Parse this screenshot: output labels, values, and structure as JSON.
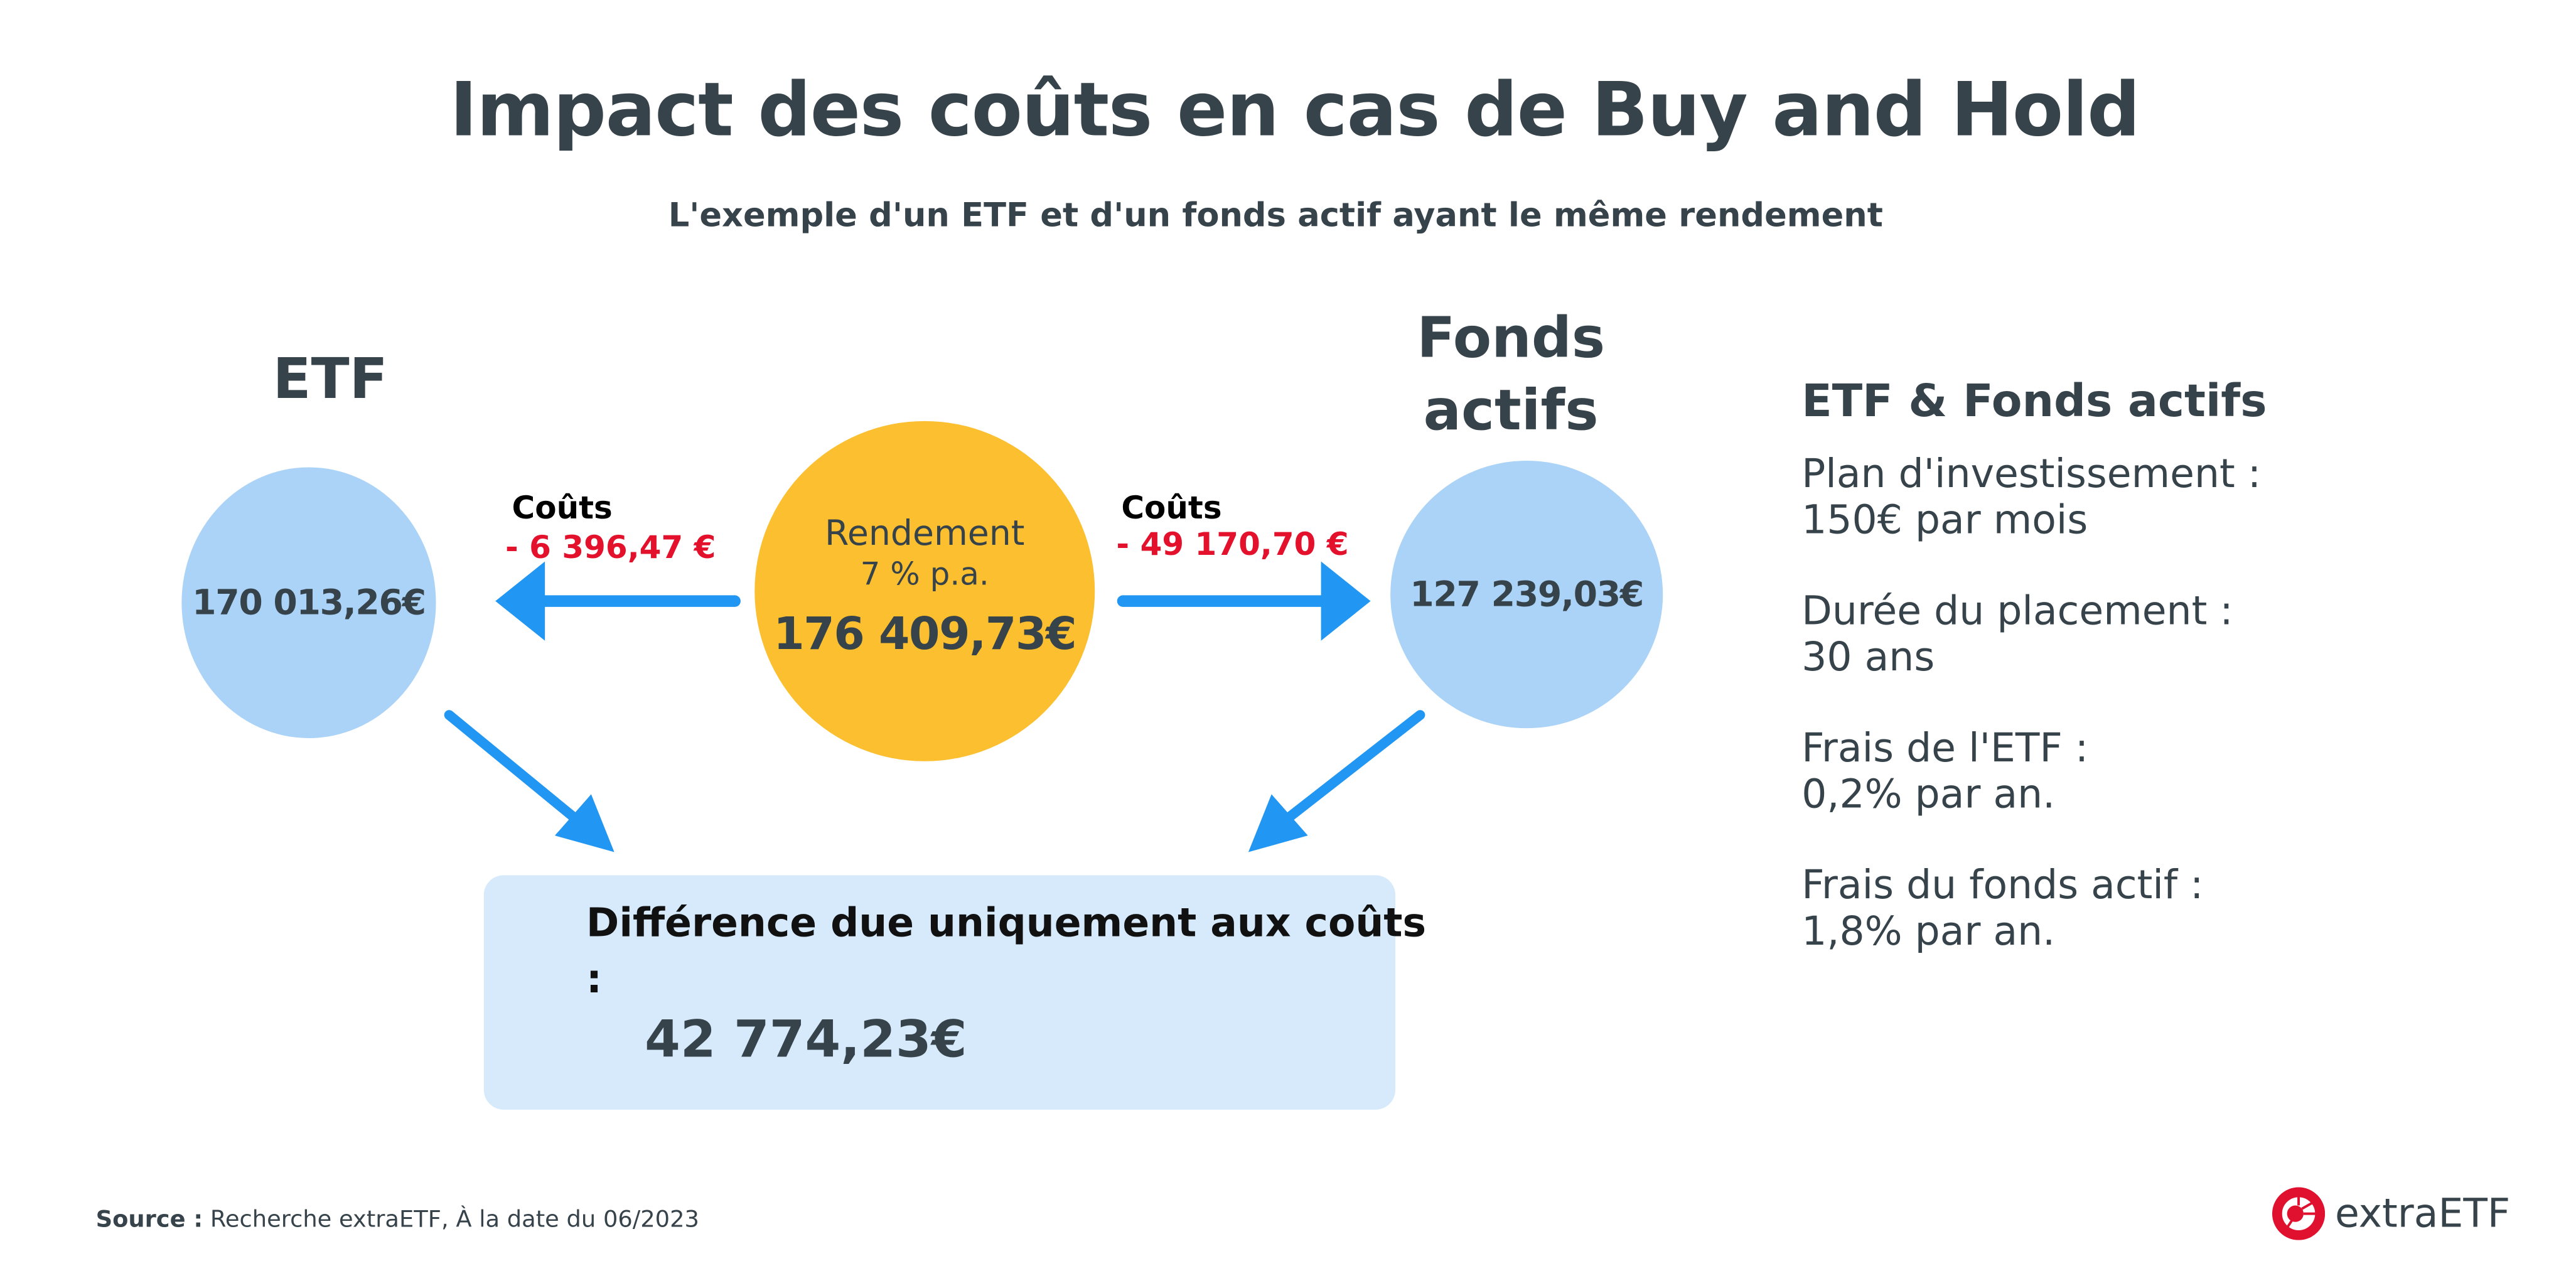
{
  "title": "Impact des coûts en cas de Buy and Hold",
  "subtitle": "L'exemple d'un ETF et d'un fonds actif ayant le même rendement",
  "etf": {
    "label": "ETF",
    "value": "170 013,26€"
  },
  "fonds": {
    "label_line1": "Fonds",
    "label_line2": "actifs",
    "value": "127 239,03€"
  },
  "center": {
    "line1": "Rendement",
    "line2": "7 % p.a.",
    "value": "176 409,73€"
  },
  "costs_left": {
    "label": "Coûts",
    "value": "- 6 396,47 €"
  },
  "costs_right": {
    "label": "Coûts",
    "value": "- 49 170,70 €"
  },
  "difference": {
    "text": "Différence due uniquement aux coûts :",
    "value": "42 774,23€"
  },
  "panel": {
    "heading": "ETF & Fonds actifs",
    "items": [
      {
        "label": "Plan d'investissement :",
        "value": "150€ par mois"
      },
      {
        "label": "Durée du placement :",
        "value": "30 ans"
      },
      {
        "label": "Frais de l'ETF :",
        "value": "0,2% par an."
      },
      {
        "label": "Frais du fonds actif :",
        "value": "1,8% par an."
      }
    ]
  },
  "source": {
    "label": "Source :",
    "text": "Recherche extraETF, À la date du 06/2023"
  },
  "logo": {
    "text": "extraETF"
  },
  "colors": {
    "text": "#37434a",
    "cost_red": "#e3112b",
    "arrow_blue": "#2196f3",
    "circle_blue": "#aad3f7",
    "center_yellow": "#fbbf2f",
    "box_blue": "#d6eafb",
    "logo_red": "#e0102f"
  }
}
